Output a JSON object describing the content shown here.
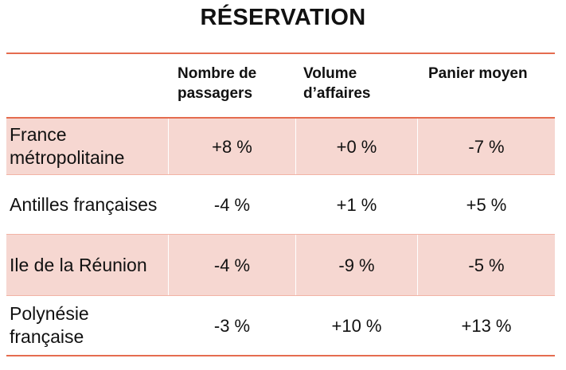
{
  "title": "RÉSERVATION",
  "header": {
    "col0": "",
    "col1": "Nombre de passagers",
    "col2": "Volume d’affaires",
    "col3": "Panier moyen"
  },
  "rows": [
    {
      "label": "France métropolitaine",
      "passagers": "+8 %",
      "volume": "+0 %",
      "panier": "-7 %"
    },
    {
      "label": "Antilles françaises",
      "passagers": "-4 %",
      "volume": "+1 %",
      "panier": "+5 %"
    },
    {
      "label": "Ile de la Réunion",
      "passagers": "-4 %",
      "volume": "-9 %",
      "panier": "-5 %"
    },
    {
      "label": "Polynésie française",
      "passagers": "-3 %",
      "volume": "+10 %",
      "panier": "+13 %"
    }
  ],
  "colors": {
    "accent_rule": "#e56c4f",
    "row_shade": "#f6d7d1"
  }
}
